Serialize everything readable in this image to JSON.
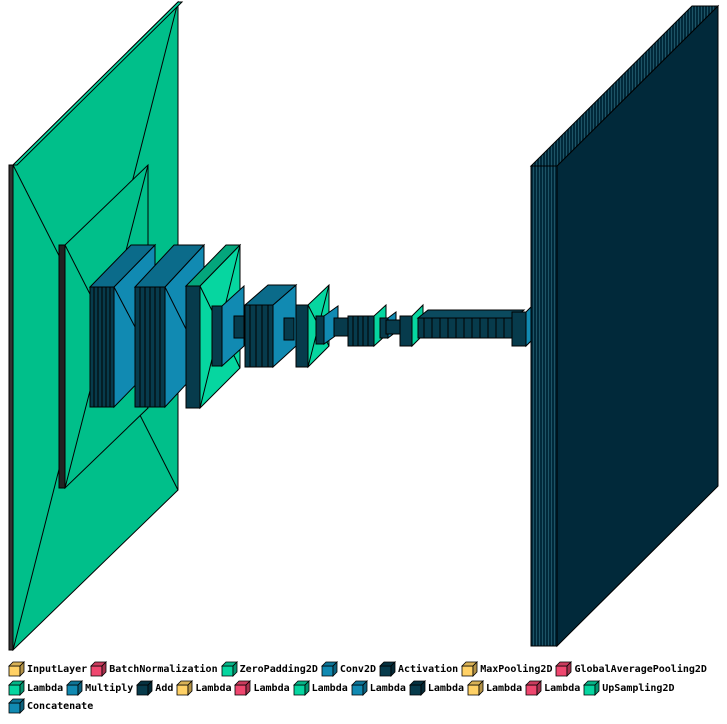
{
  "colors": {
    "input": "#FFD166",
    "batchnorm": "#EF476F",
    "zeropad": "#06D6A0",
    "conv": "#118AB2",
    "activation": "#073B4C",
    "big_green": "#00BF8A",
    "big_dark": "#01293A",
    "stroke": "#000000"
  },
  "legend": {
    "rows": [
      [
        {
          "label": "InputLayer",
          "color": "#FFD166"
        },
        {
          "label": "BatchNormalization",
          "color": "#EF476F"
        },
        {
          "label": "ZeroPadding2D",
          "color": "#06D6A0"
        },
        {
          "label": "Conv2D",
          "color": "#118AB2"
        },
        {
          "label": "Activation",
          "color": "#073B4C"
        },
        {
          "label": "MaxPooling2D",
          "color": "#FFD166"
        },
        {
          "label": "GlobalAveragePooling2D",
          "color": "#EF476F"
        }
      ],
      [
        {
          "label": "Lambda",
          "color": "#06D6A0"
        },
        {
          "label": "Multiply",
          "color": "#118AB2"
        },
        {
          "label": "Add",
          "color": "#073B4C"
        },
        {
          "label": "Lambda",
          "color": "#FFD166"
        },
        {
          "label": "Lambda",
          "color": "#EF476F"
        },
        {
          "label": "Lambda",
          "color": "#06D6A0"
        },
        {
          "label": "Lambda",
          "color": "#118AB2"
        },
        {
          "label": "Lambda",
          "color": "#073B4C"
        },
        {
          "label": "Lambda",
          "color": "#FFD166"
        },
        {
          "label": "Lambda",
          "color": "#EF476F"
        },
        {
          "label": "UpSampling2D",
          "color": "#06D6A0"
        }
      ],
      [
        {
          "label": "Concatenate",
          "color": "#118AB2"
        }
      ]
    ]
  }
}
